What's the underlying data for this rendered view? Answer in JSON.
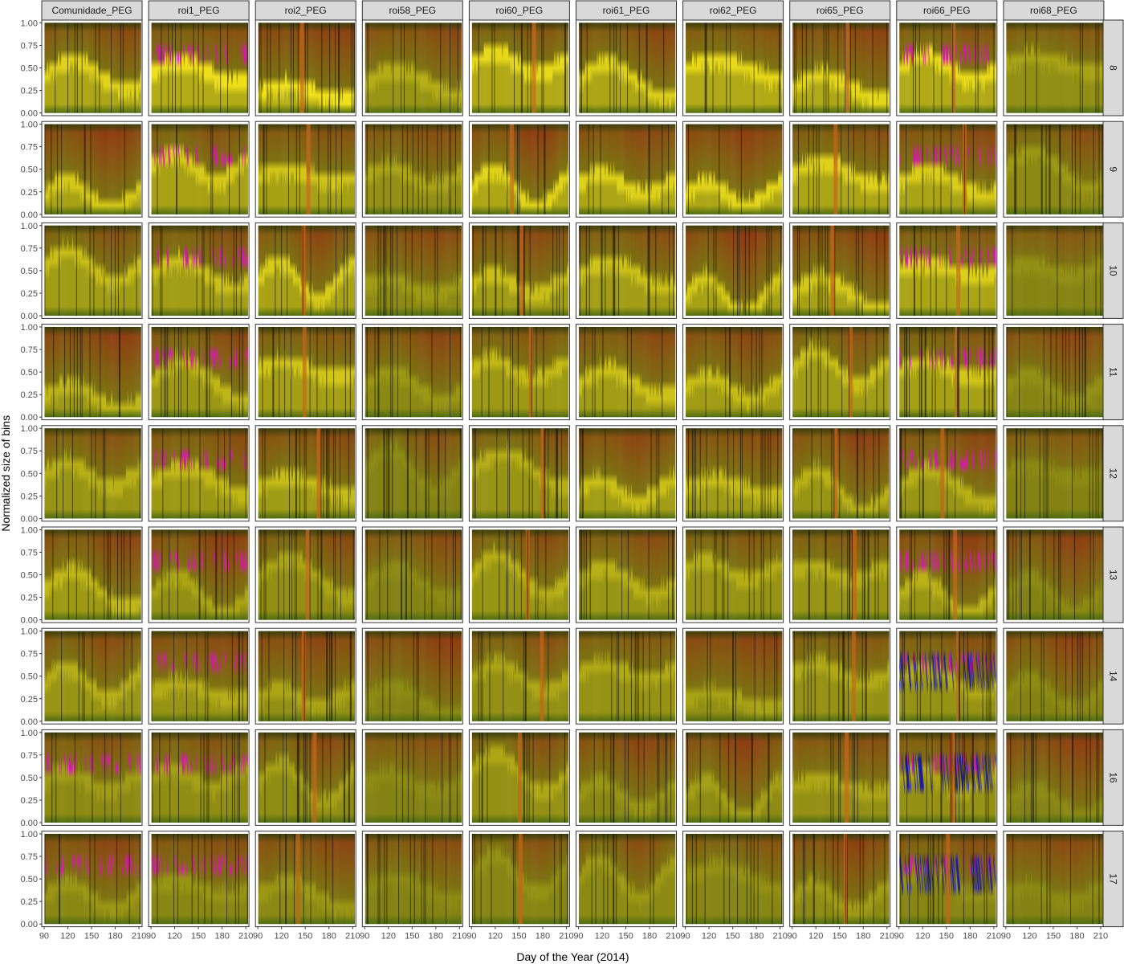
{
  "chart_data": {
    "type": "heatmap",
    "title": "",
    "xlabel": "Day of the Year (2014)",
    "ylabel": "Normalized size of bins",
    "column_facets": [
      "Comunidade_PEG",
      "roi1_PEG",
      "roi2_PEG",
      "roi58_PEG",
      "roi60_PEG",
      "roi61_PEG",
      "roi62_PEG",
      "roi65_PEG",
      "roi66_PEG",
      "roi68_PEG"
    ],
    "row_facets": [
      "8",
      "9",
      "10",
      "11",
      "12",
      "13",
      "14",
      "16",
      "17"
    ],
    "x_ticks": [
      90,
      120,
      150,
      180,
      210
    ],
    "x_tick_labels": [
      "90",
      "120",
      "150",
      "180",
      "210"
    ],
    "y_ticks": [
      0,
      0.25,
      0.5,
      0.75,
      1
    ],
    "y_tick_labels": [
      "0.00",
      "0.25",
      "0.50",
      "0.75",
      "1.00"
    ],
    "xlim": [
      87,
      214
    ],
    "ylim": [
      -0.03,
      1.03
    ],
    "day_range": [
      91,
      212
    ],
    "grid": false,
    "legend": "none",
    "colors": {
      "yellow": "#f2e21a",
      "olive": "#7a7a12",
      "dark_olive": "#3d3d0c",
      "brown": "#8a4a12",
      "orange": "#c8641a",
      "green": "#5a8a14",
      "magenta": "#d21aa8",
      "cyan": "#1ac8d2",
      "blue": "#1a1aa0",
      "strip_fill": "#d9d9d9",
      "strip_border": "#333333"
    }
  }
}
